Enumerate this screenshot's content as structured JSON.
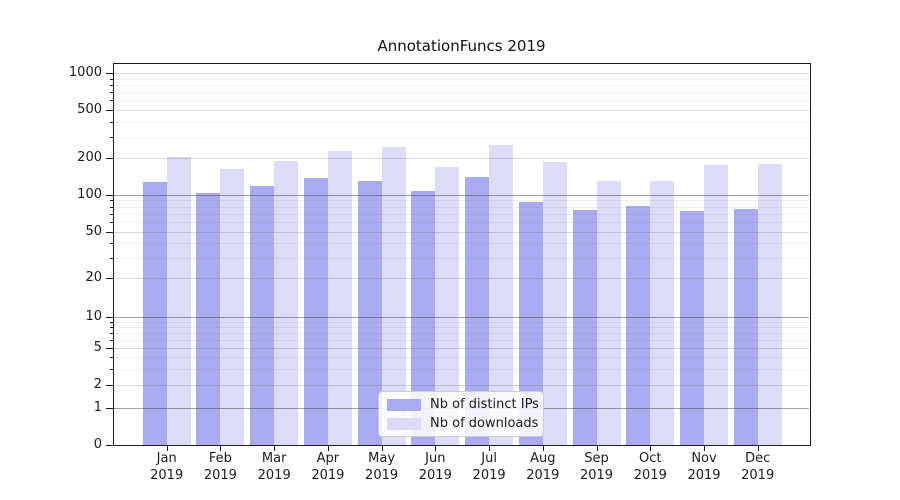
{
  "chart_data": {
    "type": "bar",
    "title": "AnnotationFuncs 2019",
    "categories": [
      "Jan",
      "Feb",
      "Mar",
      "Apr",
      "May",
      "Jun",
      "Jul",
      "Aug",
      "Sep",
      "Oct",
      "Nov",
      "Dec"
    ],
    "category_year": "2019",
    "series": [
      {
        "name": "Nb of distinct IPs",
        "color": "#aaaaf0",
        "values": [
          127,
          104,
          118,
          137,
          129,
          107,
          140,
          87,
          75,
          81,
          74,
          76
        ]
      },
      {
        "name": "Nb of downloads",
        "color": "#dcdcf8",
        "values": [
          202,
          162,
          189,
          229,
          247,
          169,
          256,
          185,
          130,
          130,
          175,
          178
        ]
      }
    ],
    "yscale": "symlog",
    "yticks": [
      0,
      1,
      2,
      5,
      10,
      20,
      50,
      100,
      200,
      500,
      1000
    ],
    "yminorticks": [
      3,
      4,
      6,
      7,
      8,
      9,
      30,
      40,
      60,
      70,
      80,
      90,
      300,
      400,
      600,
      700,
      800,
      900
    ],
    "ylim": [
      0,
      1200
    ],
    "grid": true,
    "legend_position": "lower center"
  }
}
